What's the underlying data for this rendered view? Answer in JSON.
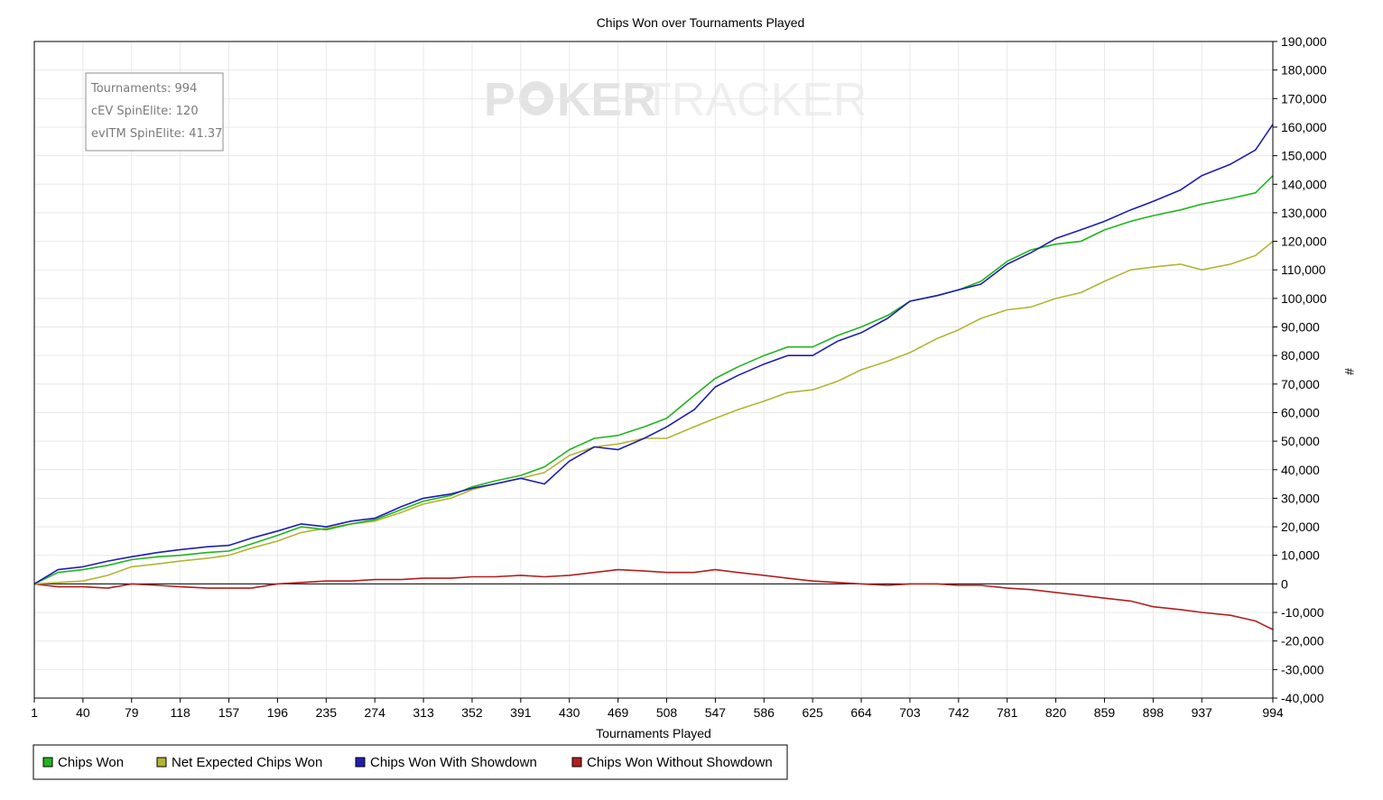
{
  "chart_data": {
    "type": "line",
    "title": "Chips Won over Tournaments Played",
    "xlabel": "Tournaments Played",
    "ylabel": "#",
    "x_ticks": [
      "1",
      "40",
      "79",
      "118",
      "157",
      "196",
      "235",
      "274",
      "313",
      "352",
      "391",
      "430",
      "469",
      "508",
      "547",
      "586",
      "625",
      "664",
      "703",
      "742",
      "781",
      "820",
      "859",
      "898",
      "937",
      "994"
    ],
    "y_ticks": [
      "190,000",
      "180,000",
      "170,000",
      "160,000",
      "150,000",
      "140,000",
      "130,000",
      "120,000",
      "110,000",
      "100,000",
      "90,000",
      "80,000",
      "70,000",
      "60,000",
      "50,000",
      "40,000",
      "30,000",
      "20,000",
      "10,000",
      "0",
      "-10,000",
      "-20,000",
      "-30,000",
      "-40,000"
    ],
    "xlim": [
      1,
      994
    ],
    "ylim": [
      -40000,
      190000
    ],
    "grid": true,
    "legend_position": "bottom-left",
    "x": [
      1,
      20,
      40,
      60,
      79,
      100,
      118,
      140,
      157,
      175,
      196,
      215,
      235,
      255,
      274,
      295,
      313,
      335,
      352,
      370,
      391,
      410,
      430,
      450,
      469,
      490,
      508,
      530,
      547,
      565,
      586,
      605,
      625,
      645,
      664,
      685,
      703,
      725,
      742,
      760,
      781,
      800,
      820,
      840,
      859,
      880,
      898,
      920,
      937,
      960,
      980,
      994
    ],
    "series": [
      {
        "name": "Chips Won",
        "color": "#22b41e",
        "values": [
          0,
          4000,
          5000,
          6500,
          8500,
          9500,
          10000,
          11000,
          11500,
          14000,
          17000,
          20000,
          19000,
          21000,
          22500,
          26000,
          29000,
          31000,
          34000,
          36000,
          38000,
          41000,
          47000,
          51000,
          52000,
          55000,
          58000,
          66000,
          72000,
          76000,
          80000,
          83000,
          83000,
          87000,
          90000,
          94000,
          99000,
          101000,
          103000,
          106000,
          113000,
          117000,
          119000,
          120000,
          124000,
          127000,
          129000,
          131000,
          133000,
          135000,
          137000,
          143000
        ]
      },
      {
        "name": "Net Expected Chips Won",
        "color": "#b4b432",
        "values": [
          0,
          500,
          1000,
          3000,
          6000,
          7000,
          8000,
          9000,
          10000,
          12500,
          15000,
          18000,
          19500,
          21000,
          22000,
          25000,
          28000,
          30000,
          33000,
          35000,
          37000,
          39000,
          45000,
          48000,
          49000,
          51000,
          51000,
          55000,
          58000,
          61000,
          64000,
          67000,
          68000,
          71000,
          75000,
          78000,
          81000,
          86000,
          89000,
          93000,
          96000,
          97000,
          100000,
          102000,
          106000,
          110000,
          111000,
          112000,
          110000,
          112000,
          115000,
          120000
        ]
      },
      {
        "name": "Chips Won With Showdown",
        "color": "#1e1eb4",
        "values": [
          0,
          5000,
          6000,
          8000,
          9500,
          11000,
          12000,
          13000,
          13500,
          16000,
          18500,
          21000,
          20000,
          22000,
          23000,
          27000,
          30000,
          31500,
          33500,
          35000,
          37000,
          35000,
          43000,
          48000,
          47000,
          51000,
          55000,
          61000,
          69000,
          73000,
          77000,
          80000,
          80000,
          85000,
          88000,
          93000,
          99000,
          101000,
          103000,
          105000,
          112000,
          116000,
          121000,
          124000,
          127000,
          131000,
          134000,
          138000,
          143000,
          147000,
          152000,
          161000
        ]
      },
      {
        "name": "Chips Won Without Showdown",
        "color": "#b41e1e",
        "values": [
          0,
          -1000,
          -1000,
          -1500,
          0,
          -500,
          -1000,
          -1500,
          -1500,
          -1500,
          0,
          500,
          1000,
          1000,
          1500,
          1500,
          2000,
          2000,
          2500,
          2500,
          3000,
          2500,
          3000,
          4000,
          5000,
          4500,
          4000,
          4000,
          5000,
          4000,
          3000,
          2000,
          1000,
          500,
          0,
          -500,
          0,
          0,
          -500,
          -500,
          -1500,
          -2000,
          -3000,
          -4000,
          -5000,
          -6000,
          -8000,
          -9000,
          -10000,
          -11000,
          -13000,
          -16000
        ]
      }
    ],
    "info_box": {
      "lines": [
        "Tournaments: 994",
        "cEV SpinElite: 120",
        "evITM SpinElite: 41.37"
      ]
    },
    "watermark": {
      "left": "P",
      "right": "KER",
      "faded": "TRACKER"
    }
  }
}
